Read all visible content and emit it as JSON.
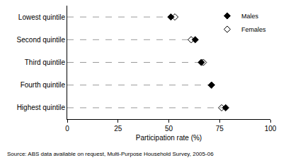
{
  "chart_data": {
    "type": "scatter",
    "orientation": "horizontal",
    "categories": [
      "Lowest quintile",
      "Second quintile",
      "Third quintile",
      "Fourth quintile",
      "Highest quintile"
    ],
    "series": [
      {
        "name": "Males",
        "color": "#000000",
        "marker": "diamond",
        "values": [
          51,
          63,
          66,
          71,
          78
        ]
      },
      {
        "name": "Females",
        "color": "#000000",
        "marker": "diamond-open",
        "values": [
          53,
          61,
          67,
          71,
          76
        ]
      }
    ],
    "x_label": "Participation rate (%)",
    "xlim": [
      0,
      100
    ],
    "xticks": [
      0,
      25,
      50,
      75,
      100
    ],
    "grid": false,
    "legend": "top right",
    "annotations": [
      "Source: ABS data available on request, Multi-Purpose Household Survey, 2005-06"
    ]
  }
}
